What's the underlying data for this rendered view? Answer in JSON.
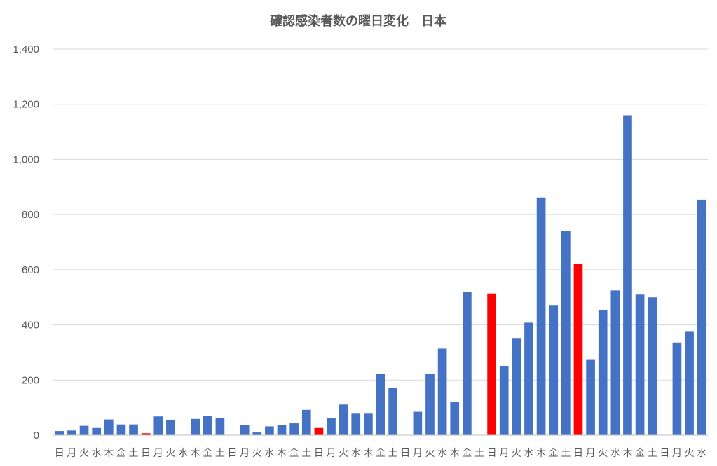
{
  "chart_data": {
    "type": "bar",
    "title": "確認感染者数の曜日変化　日本",
    "xlabel": "",
    "ylabel": "",
    "ylim": [
      0,
      1400
    ],
    "yticks": [
      0,
      200,
      400,
      600,
      800,
      1000,
      1200,
      1400
    ],
    "ytick_labels": [
      "0",
      "200",
      "400",
      "600",
      "800",
      "1,000",
      "1,200",
      "1,400"
    ],
    "grid": true,
    "legend": "none",
    "colors": {
      "default": "#4472C4",
      "sunday": "#FF0000"
    },
    "categories": [
      "日",
      "月",
      "火",
      "水",
      "木",
      "金",
      "土",
      "日",
      "月",
      "火",
      "水",
      "木",
      "金",
      "土",
      "日",
      "月",
      "火",
      "水",
      "木",
      "金",
      "土",
      "日",
      "月",
      "火",
      "水",
      "木",
      "金",
      "土",
      "日",
      "月",
      "火",
      "水",
      "木",
      "金",
      "土",
      "日",
      "月",
      "火",
      "水",
      "木",
      "金",
      "土",
      "日",
      "月",
      "火",
      "水",
      "木",
      "金",
      "土",
      "日",
      "月",
      "火",
      "水"
    ],
    "values": [
      15,
      17,
      34,
      26,
      57,
      39,
      39,
      7,
      68,
      56,
      0,
      59,
      70,
      63,
      0,
      37,
      10,
      32,
      36,
      43,
      92,
      26,
      61,
      111,
      78,
      78,
      223,
      172,
      0,
      85,
      223,
      314,
      120,
      520,
      0,
      514,
      250,
      350,
      408,
      862,
      472,
      742,
      620,
      273,
      454,
      525,
      1160,
      510,
      500,
      0,
      336,
      375,
      854
    ],
    "highlight_sunday": [
      false,
      false,
      false,
      false,
      false,
      false,
      false,
      true,
      false,
      false,
      false,
      false,
      false,
      false,
      false,
      false,
      false,
      false,
      false,
      false,
      false,
      true,
      false,
      false,
      false,
      false,
      false,
      false,
      false,
      false,
      false,
      false,
      false,
      false,
      false,
      true,
      false,
      false,
      false,
      false,
      false,
      false,
      true,
      false,
      false,
      false,
      false,
      false,
      false,
      false,
      false,
      false,
      false
    ]
  }
}
